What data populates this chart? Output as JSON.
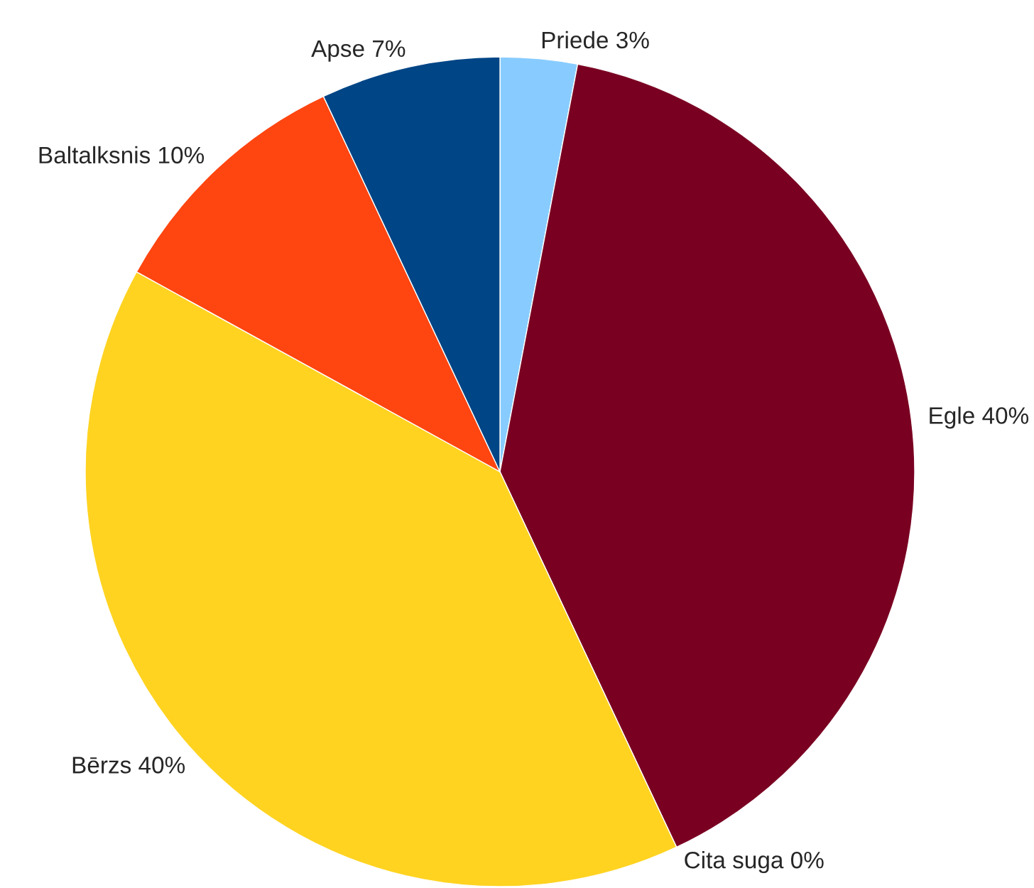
{
  "chart_data": {
    "type": "pie",
    "categories": [
      "Priede",
      "Egle",
      "Cita suga",
      "Bērzs",
      "Baltalksnis",
      "Apse"
    ],
    "values": [
      3,
      40,
      0,
      40,
      10,
      7
    ],
    "value_labels": [
      "3%",
      "40%",
      "0%",
      "40%",
      "10%",
      "7%"
    ],
    "colors": [
      "#88ccff",
      "#7a0022",
      "#4a9a2a",
      "#ffd320",
      "#ff4510",
      "#004586"
    ],
    "legend": false
  }
}
